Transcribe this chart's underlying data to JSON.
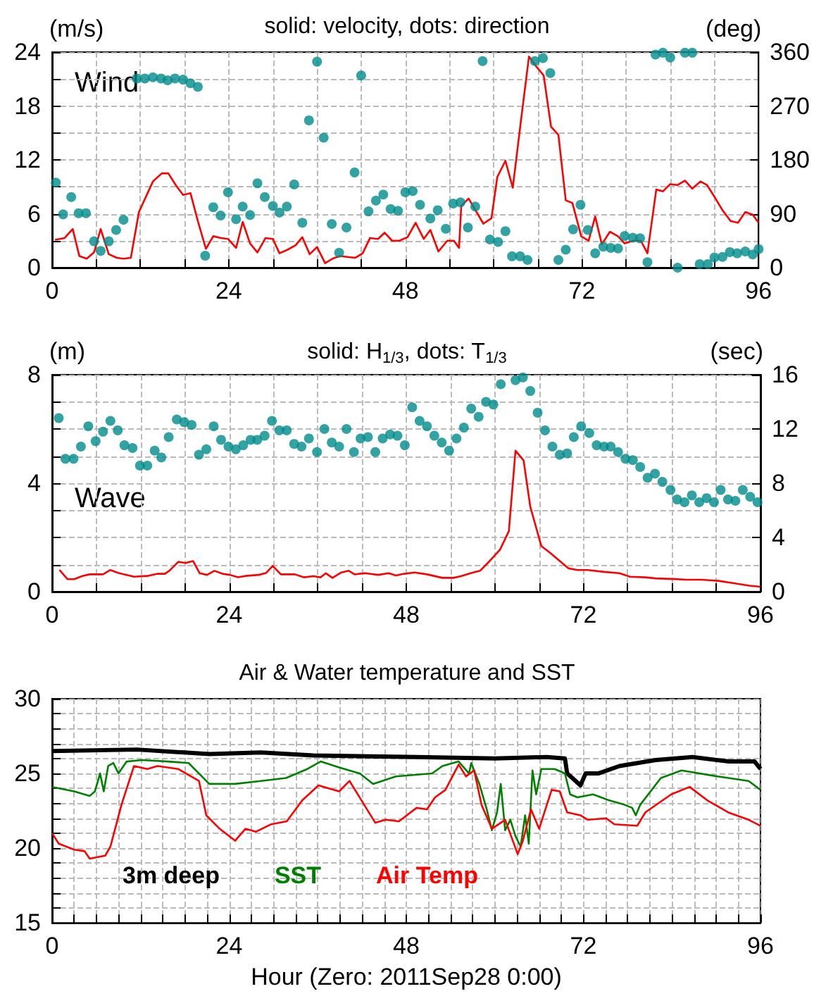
{
  "chart_data": [
    {
      "type": "line",
      "title": "solid: velocity, dots: direction",
      "ylabel": "(m/s)",
      "y2label": "(deg)",
      "annotations": [
        "Wind"
      ],
      "xlim": [
        0,
        96
      ],
      "xticks": [
        0,
        {
          "value": 6,
          "label": null
        },
        {
          "value": 12,
          "label": null
        },
        {
          "value": 18,
          "label": null
        },
        24,
        {
          "value": 30,
          "label": null
        },
        {
          "value": 36,
          "label": null
        },
        {
          "value": 42,
          "label": null
        },
        48,
        {
          "value": 54,
          "label": null
        },
        {
          "value": 60,
          "label": null
        },
        {
          "value": 66,
          "label": null
        },
        72,
        {
          "value": 78,
          "label": null
        },
        {
          "value": 84,
          "label": null
        },
        {
          "value": 90,
          "label": null
        },
        96
      ],
      "ylim": [
        0,
        24
      ],
      "yticks": [
        0,
        {
          "value": 3,
          "label": null
        },
        6,
        {
          "value": 9,
          "label": null
        },
        12,
        {
          "value": 15,
          "label": null
        },
        18,
        {
          "value": 21,
          "label": null
        },
        24
      ],
      "y2lim": [
        0,
        360
      ],
      "y2ticks": [
        0,
        90,
        180,
        270,
        360
      ],
      "grid": true,
      "line_style": "solid",
      "series": [
        {
          "color": "#ff0000",
          "x": [
            0.4,
            1.7,
            2.8,
            3.7,
            4.7,
            5.7,
            6.6,
            7.7,
            8.8,
            9.7,
            10.7,
            11.8,
            13.7,
            14.9,
            15.8,
            16.8,
            17.8,
            18.8,
            19.8,
            20.9,
            21.9,
            23.0,
            23.9,
            25.0,
            25.9,
            26.9,
            27.9,
            29.0,
            30.0,
            30.9,
            32.0,
            33.1,
            34.0,
            35.0,
            36.0,
            37.1,
            38.1,
            39.1,
            40.1,
            41.2,
            42.2,
            43.2,
            44.3,
            45.2,
            46.2,
            47.2,
            48.3,
            49.4,
            50.5,
            51.4,
            52.5,
            53.7,
            54.6,
            55.3,
            55.6,
            56.6,
            57.6,
            58.6,
            59.7,
            60.5,
            61.6,
            62.6,
            63.7,
            64.8,
            65.7,
            66.8,
            67.8,
            68.8,
            69.8,
            70.7,
            71.9,
            72.9,
            73.8,
            74.7,
            75.8,
            76.9,
            77.8,
            79.0,
            80.0,
            80.9,
            82.1,
            83.0,
            84.0,
            85.0,
            86.0,
            87.0,
            88.1,
            89.0,
            90.0,
            91.1,
            92.2,
            93.2,
            94.2,
            95.2,
            96.0
          ],
          "values": [
            3.1,
            3.3,
            4.3,
            1.3,
            1.0,
            1.7,
            4.3,
            1.5,
            1.1,
            1.0,
            1.1,
            6.2,
            9.6,
            10.5,
            10.5,
            9.2,
            8.1,
            8.3,
            5.2,
            2.1,
            3.5,
            3.3,
            3.2,
            2.2,
            5.1,
            2.7,
            1.7,
            3.3,
            3.2,
            1.6,
            2.0,
            2.5,
            3.4,
            1.5,
            2.3,
            0.5,
            1.0,
            1.3,
            1.2,
            1.1,
            1.6,
            3.3,
            3.2,
            3.9,
            3.0,
            3.0,
            3.4,
            5.0,
            3.2,
            4.2,
            1.8,
            3.0,
            3.0,
            2.2,
            6.9,
            7.7,
            6.3,
            4.9,
            5.5,
            10.1,
            11.9,
            8.9,
            16.3,
            23.5,
            22.5,
            21.4,
            15.7,
            14.8,
            7.5,
            7.2,
            3.5,
            3.0,
            5.7,
            2.6,
            4.0,
            3.5,
            2.7,
            3.0,
            3.0,
            1.6,
            8.7,
            8.5,
            9.3,
            9.2,
            9.7,
            8.8,
            9.6,
            9.2,
            7.9,
            6.4,
            5.2,
            5.0,
            6.2,
            5.9,
            5.0
          ]
        },
        {
          "type": "scatter",
          "marker": "circle",
          "axis": "y2",
          "color": "#008b8b",
          "x": [
            0.5,
            1.5,
            2.6,
            3.6,
            4.6,
            5.7,
            6.6,
            7.7,
            8.7,
            9.7,
            11.5,
            12.6,
            13.7,
            14.8,
            15.7,
            16.7,
            17.8,
            18.8,
            19.8,
            20.8,
            21.9,
            22.9,
            23.9,
            25.0,
            25.9,
            26.9,
            27.9,
            28.9,
            30.0,
            30.9,
            31.9,
            32.9,
            34.0,
            34.9,
            36.0,
            36.9,
            38.0,
            39.0,
            40.0,
            41.1,
            42.0,
            43.0,
            44.0,
            45.0,
            46.0,
            47.0,
            48.0,
            49.0,
            50.0,
            51.4,
            52.4,
            53.5,
            54.5,
            55.5,
            56.5,
            57.5,
            58.5,
            59.5,
            60.6,
            61.6,
            62.5,
            63.6,
            64.6,
            65.6,
            66.7,
            67.7,
            68.8,
            69.8,
            70.8,
            71.8,
            72.8,
            73.8,
            74.9,
            75.9,
            76.9,
            77.8,
            78.9,
            79.9,
            80.9,
            82.0,
            83.0,
            84.0,
            85.0,
            86.0,
            87.0,
            88.0,
            89.1,
            90.0,
            91.1,
            92.1,
            93.1,
            94.2,
            95.2,
            96.0
          ],
          "values": [
            142,
            89,
            118,
            91,
            91,
            44,
            28,
            44,
            63,
            80,
            316,
            316,
            318,
            316,
            313,
            316,
            314,
            308,
            302,
            20,
            101,
            87,
            126,
            81,
            102,
            88,
            141,
            118,
            103,
            92,
            102,
            139,
            75,
            246,
            344,
            217,
            73,
            25,
            67,
            159,
            321,
            94,
            112,
            122,
            98,
            95,
            126,
            128,
            105,
            82,
            96,
            65,
            107,
            109,
            67,
            102,
            345,
            47,
            43,
            61,
            19,
            19,
            13,
            345,
            350,
            325,
            13,
            30,
            64,
            105,
            63,
            24,
            35,
            33,
            32,
            53,
            50,
            49,
            9,
            356,
            359,
            351,
            0,
            359,
            359,
            6,
            6,
            17,
            18,
            26,
            24,
            27,
            22,
            31
          ]
        }
      ]
    },
    {
      "type": "line",
      "title": "solid: H$_{1/3}$, dots: T$_{1/3}$",
      "ylabel": "(m)",
      "y2label": "(sec)",
      "annotations": [
        "Wave"
      ],
      "xlim": [
        0,
        96
      ],
      "xticks": [
        0,
        {
          "value": 6,
          "label": null
        },
        {
          "value": 12,
          "label": null
        },
        {
          "value": 18,
          "label": null
        },
        24,
        {
          "value": 30,
          "label": null
        },
        {
          "value": 36,
          "label": null
        },
        {
          "value": 42,
          "label": null
        },
        48,
        {
          "value": 54,
          "label": null
        },
        {
          "value": 60,
          "label": null
        },
        {
          "value": 66,
          "label": null
        },
        72,
        {
          "value": 78,
          "label": null
        },
        {
          "value": 84,
          "label": null
        },
        {
          "value": 90,
          "label": null
        },
        96
      ],
      "ylim": [
        0,
        8
      ],
      "yticks": [
        0,
        {
          "value": 1,
          "label": null
        },
        {
          "value": 2,
          "label": null
        },
        {
          "value": 3,
          "label": null
        },
        4,
        {
          "value": 5,
          "label": null
        },
        {
          "value": 6,
          "label": null
        },
        {
          "value": 7,
          "label": null
        },
        8
      ],
      "y2lim": [
        0,
        16
      ],
      "y2ticks": [
        0,
        4,
        8,
        12,
        16
      ],
      "grid": true,
      "line_style": "solid",
      "series": [
        {
          "color": "#ff0000",
          "x": [
            1.0,
            2.1,
            3.0,
            4.1,
            5.1,
            6.9,
            7.9,
            9.0,
            11.1,
            12.9,
            14.3,
            15.3,
            16.0,
            17.1,
            18.1,
            19.1,
            20.0,
            21.0,
            22.0,
            23.1,
            24.1,
            25.2,
            26.2,
            28.0,
            29.0,
            29.9,
            31.0,
            32.9,
            34.1,
            35.4,
            36.4,
            37.1,
            38.0,
            39.2,
            40.2,
            41.0,
            42.4,
            44.2,
            45.6,
            46.6,
            47.7,
            49.1,
            50.8,
            52.9,
            54.4,
            55.4,
            56.8,
            58.0,
            59.3,
            60.7,
            61.9,
            62.8,
            63.9,
            64.8,
            66.3,
            67.6,
            68.8,
            70.0,
            71.2,
            72.6,
            74.8,
            76.9,
            78.3,
            80.4,
            81.8,
            83.9,
            86.0,
            88.1,
            90.3,
            92.4,
            94.5,
            96.0
          ],
          "values": [
            0.8,
            0.46,
            0.46,
            0.58,
            0.64,
            0.64,
            0.8,
            0.69,
            0.55,
            0.58,
            0.66,
            0.66,
            0.8,
            1.1,
            1.06,
            1.13,
            0.68,
            0.62,
            0.77,
            0.66,
            0.62,
            0.53,
            0.58,
            0.62,
            0.69,
            0.95,
            0.64,
            0.64,
            0.53,
            0.57,
            0.53,
            0.68,
            0.51,
            0.71,
            0.77,
            0.64,
            0.68,
            0.62,
            0.68,
            0.6,
            0.66,
            0.71,
            0.64,
            0.51,
            0.51,
            0.57,
            0.69,
            0.77,
            1.13,
            1.55,
            2.23,
            5.2,
            4.84,
            3.14,
            1.68,
            1.41,
            1.13,
            0.86,
            0.8,
            0.8,
            0.73,
            0.68,
            0.55,
            0.53,
            0.49,
            0.47,
            0.44,
            0.44,
            0.4,
            0.31,
            0.22,
            0.18
          ]
        },
        {
          "type": "scatter",
          "marker": "circle",
          "axis": "y2",
          "color": "#008b8b",
          "x": [
            0.9,
            1.8,
            2.9,
            3.9,
            4.9,
            5.9,
            6.9,
            7.9,
            8.9,
            9.8,
            10.9,
            11.9,
            12.9,
            13.9,
            14.8,
            15.8,
            16.9,
            17.9,
            18.9,
            19.9,
            20.9,
            21.9,
            22.9,
            23.9,
            24.9,
            25.9,
            26.9,
            27.8,
            28.8,
            29.8,
            30.8,
            31.8,
            32.8,
            33.8,
            34.8,
            35.9,
            36.9,
            37.9,
            38.9,
            39.9,
            40.9,
            41.8,
            42.8,
            43.8,
            44.8,
            45.8,
            46.8,
            47.8,
            48.8,
            49.8,
            50.8,
            51.8,
            52.8,
            53.8,
            54.8,
            55.8,
            56.8,
            57.8,
            58.8,
            59.8,
            60.8,
            62.8,
            63.8,
            64.8,
            65.8,
            66.8,
            67.8,
            68.8,
            69.8,
            70.7,
            71.7,
            72.8,
            73.8,
            74.8,
            75.7,
            76.7,
            77.7,
            78.7,
            79.7,
            80.7,
            81.7,
            82.7,
            83.8,
            84.7,
            85.7,
            86.7,
            87.7,
            88.7,
            89.7,
            90.6,
            91.6,
            92.6,
            93.6,
            94.6,
            95.6
          ],
          "values": [
            12.8,
            9.8,
            9.8,
            10.7,
            12.2,
            11.1,
            11.8,
            12.6,
            11.9,
            10.8,
            10.6,
            9.3,
            9.3,
            10.4,
            9.9,
            11.4,
            12.7,
            12.5,
            12.3,
            10.1,
            10.5,
            12.2,
            11.2,
            10.7,
            10.5,
            10.8,
            11.2,
            11.2,
            11.5,
            12.6,
            11.9,
            11.9,
            10.9,
            10.7,
            11.3,
            10.3,
            12.0,
            11.0,
            10.7,
            12.0,
            10.3,
            11.3,
            11.4,
            10.3,
            11.3,
            11.6,
            11.5,
            10.8,
            13.6,
            12.6,
            12.2,
            11.5,
            11.0,
            10.4,
            11.3,
            12.1,
            13.5,
            12.9,
            14.0,
            13.8,
            15.3,
            15.6,
            15.8,
            14.8,
            13.2,
            11.9,
            10.7,
            10.1,
            10.2,
            11.4,
            12.2,
            11.7,
            10.8,
            10.7,
            10.7,
            10.3,
            9.8,
            9.7,
            9.2,
            8.4,
            8.7,
            8.1,
            7.5,
            6.8,
            6.6,
            7.1,
            6.6,
            6.9,
            6.6,
            7.5,
            6.8,
            6.7,
            7.5,
            7.0,
            6.6
          ]
        }
      ]
    },
    {
      "type": "line",
      "title": "Air & Water temperature and SST",
      "xlabel": "Hour (Zero: 2011Sep28 0:00)",
      "xlim": [
        0,
        96
      ],
      "xticks": [
        0,
        {
          "value": 3,
          "label": null
        },
        {
          "value": 6,
          "label": null
        },
        {
          "value": 9,
          "label": null
        },
        {
          "value": 12,
          "label": null
        },
        {
          "value": 15,
          "label": null
        },
        {
          "value": 18,
          "label": null
        },
        {
          "value": 21,
          "label": null
        },
        24,
        {
          "value": 27,
          "label": null
        },
        {
          "value": 30,
          "label": null
        },
        {
          "value": 33,
          "label": null
        },
        {
          "value": 36,
          "label": null
        },
        {
          "value": 39,
          "label": null
        },
        {
          "value": 42,
          "label": null
        },
        {
          "value": 45,
          "label": null
        },
        48,
        {
          "value": 51,
          "label": null
        },
        {
          "value": 54,
          "label": null
        },
        {
          "value": 57,
          "label": null
        },
        {
          "value": 60,
          "label": null
        },
        {
          "value": 63,
          "label": null
        },
        {
          "value": 66,
          "label": null
        },
        {
          "value": 69,
          "label": null
        },
        72,
        {
          "value": 75,
          "label": null
        },
        {
          "value": 78,
          "label": null
        },
        {
          "value": 81,
          "label": null
        },
        {
          "value": 84,
          "label": null
        },
        {
          "value": 87,
          "label": null
        },
        {
          "value": 90,
          "label": null
        },
        {
          "value": 93,
          "label": null
        },
        96
      ],
      "ylim": [
        15,
        30
      ],
      "yticks": [
        15,
        {
          "value": 16,
          "label": null
        },
        {
          "value": 17,
          "label": null
        },
        {
          "value": 18,
          "label": null
        },
        {
          "value": 19,
          "label": null
        },
        20,
        {
          "value": 21,
          "label": null
        },
        {
          "value": 22,
          "label": null
        },
        {
          "value": 23,
          "label": null
        },
        {
          "value": 24,
          "label": null
        },
        25,
        {
          "value": 26,
          "label": null
        },
        {
          "value": 27,
          "label": null
        },
        {
          "value": 28,
          "label": null
        },
        {
          "value": 29,
          "label": null
        },
        30
      ],
      "grid": true,
      "legend": "bottom left",
      "line_style": "solid",
      "series": [
        {
          "name": "3m deep",
          "color": "#000000",
          "x": [
            0,
            11.5,
            21.3,
            28.3,
            35.4,
            49.4,
            60,
            67,
            69.5,
            69.8,
            70.5,
            71.6,
            72.3,
            74.0,
            76.9,
            81.8,
            86.8,
            91.7,
            95.2,
            96
          ],
          "values": [
            26.5,
            26.6,
            26.3,
            26.4,
            26.2,
            26.1,
            26.0,
            26.1,
            26.0,
            25.0,
            24.7,
            24.2,
            25.0,
            25.0,
            25.5,
            25.9,
            26.1,
            25.8,
            25.8,
            25.3
          ]
        },
        {
          "name": "SST",
          "color": "#008000",
          "x": [
            0,
            3.0,
            5.1,
            5.8,
            6.5,
            7.0,
            7.6,
            8.3,
            9.0,
            10.1,
            12.2,
            15.7,
            18.5,
            19.9,
            21.3,
            24.8,
            28.3,
            31.7,
            34.6,
            36.4,
            38.9,
            41.7,
            43.5,
            46.6,
            51.5,
            52.9,
            55.1,
            56.5,
            56.8,
            57.9,
            58.9,
            59.6,
            60.3,
            60.8,
            61.4,
            62.1,
            62.8,
            63.5,
            64.1,
            64.6,
            65.1,
            65.6,
            66.3,
            68.1,
            69.5,
            70.2,
            71.2,
            73.3,
            75.5,
            77.6,
            78.6,
            79.1,
            79.7,
            82.5,
            85.3,
            90.2,
            94.4,
            96
          ],
          "values": [
            24.1,
            23.8,
            23.5,
            23.8,
            25.0,
            23.8,
            25.5,
            25.7,
            25.0,
            25.8,
            25.9,
            25.8,
            25.7,
            25.0,
            24.3,
            24.3,
            24.5,
            24.7,
            25.3,
            25.8,
            25.4,
            25.0,
            24.3,
            24.8,
            25.0,
            25.5,
            25.8,
            25.0,
            25.7,
            24.3,
            22.6,
            21.2,
            22.4,
            24.3,
            21.2,
            21.9,
            20.8,
            20.1,
            22.2,
            20.3,
            25.2,
            23.6,
            25.3,
            25.3,
            25.0,
            23.6,
            23.4,
            23.6,
            23.2,
            22.9,
            22.7,
            22.2,
            22.9,
            24.7,
            25.2,
            24.8,
            24.5,
            23.9
          ]
        },
        {
          "name": "Air Temp",
          "color": "#ff0000",
          "x": [
            0,
            0.9,
            3.0,
            4.4,
            5.1,
            7.2,
            7.9,
            9.4,
            11.1,
            12.9,
            14.3,
            17.1,
            19.9,
            20.9,
            22.7,
            24.8,
            26.2,
            27.6,
            29.7,
            31.8,
            33.9,
            36.1,
            38.9,
            40.3,
            43.8,
            45.2,
            47.0,
            49.4,
            50.8,
            51.9,
            53.3,
            55.1,
            56.1,
            57.2,
            58.2,
            59.6,
            61.4,
            63.1,
            63.8,
            64.9,
            66.0,
            67.7,
            68.8,
            69.8,
            71.6,
            72.6,
            75.1,
            76.2,
            79.3,
            80.4,
            83.9,
            86.4,
            88.8,
            91.6,
            94.4,
            96
          ],
          "values": [
            21.0,
            20.3,
            19.9,
            19.8,
            19.3,
            19.5,
            20.1,
            22.9,
            25.5,
            25.3,
            25.5,
            25.3,
            24.5,
            22.2,
            21.3,
            20.5,
            21.3,
            21.1,
            21.6,
            21.8,
            23.2,
            24.2,
            23.8,
            24.5,
            21.7,
            21.9,
            21.8,
            22.7,
            22.6,
            23.4,
            23.9,
            25.6,
            24.8,
            25.2,
            22.9,
            21.3,
            21.9,
            19.6,
            20.5,
            22.6,
            21.3,
            23.9,
            23.8,
            22.4,
            22.2,
            21.9,
            22.0,
            21.6,
            21.5,
            22.4,
            23.6,
            24.1,
            23.2,
            22.4,
            21.9,
            21.5
          ]
        }
      ]
    }
  ]
}
